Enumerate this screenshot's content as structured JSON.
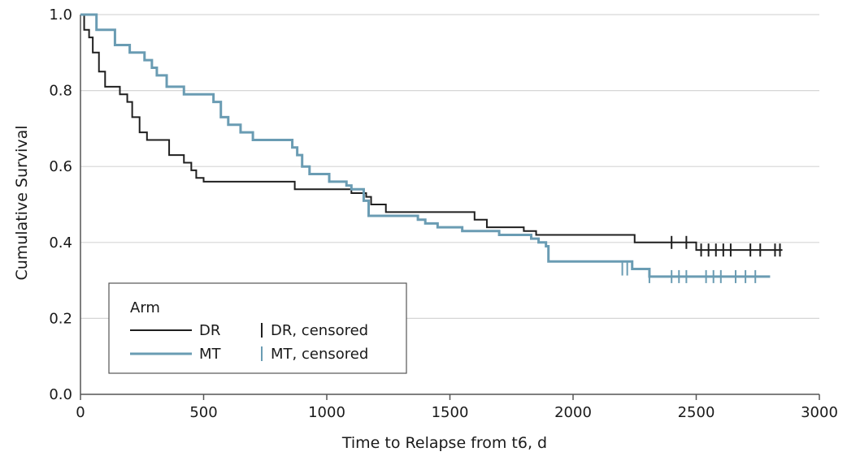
{
  "chart_data": {
    "type": "line",
    "xlabel": "Time to Relapse from t6, d",
    "ylabel": "Cumulative Survival",
    "xlim": [
      0,
      3000
    ],
    "ylim": [
      0,
      1.0
    ],
    "xticks": [
      0,
      500,
      1000,
      1500,
      2000,
      2500,
      3000
    ],
    "yticks": [
      "0.0",
      "0.2",
      "0.4",
      "0.6",
      "0.8",
      "1.0"
    ],
    "grid": "horizontal",
    "legend": {
      "title": "Arm",
      "placement": "bottom-left",
      "entries": [
        {
          "line_label": "DR",
          "censored_label": "DR, censored",
          "color": "#1f1f1f"
        },
        {
          "line_label": "MT",
          "censored_label": "MT, censored",
          "color": "#6a9cb3"
        }
      ]
    },
    "series": [
      {
        "name": "DR",
        "color": "#1f1f1f",
        "steps": [
          [
            0,
            1.0
          ],
          [
            15,
            0.96
          ],
          [
            35,
            0.94
          ],
          [
            50,
            0.9
          ],
          [
            75,
            0.85
          ],
          [
            100,
            0.81
          ],
          [
            160,
            0.79
          ],
          [
            190,
            0.77
          ],
          [
            210,
            0.73
          ],
          [
            240,
            0.69
          ],
          [
            270,
            0.67
          ],
          [
            330,
            0.67
          ],
          [
            360,
            0.63
          ],
          [
            420,
            0.61
          ],
          [
            450,
            0.59
          ],
          [
            470,
            0.57
          ],
          [
            500,
            0.56
          ],
          [
            570,
            0.56
          ],
          [
            700,
            0.56
          ],
          [
            820,
            0.56
          ],
          [
            870,
            0.54
          ],
          [
            1050,
            0.54
          ],
          [
            1090,
            0.54
          ],
          [
            1100,
            0.53
          ],
          [
            1150,
            0.53
          ],
          [
            1160,
            0.52
          ],
          [
            1180,
            0.5
          ],
          [
            1240,
            0.48
          ],
          [
            1450,
            0.48
          ],
          [
            1550,
            0.48
          ],
          [
            1600,
            0.46
          ],
          [
            1650,
            0.44
          ],
          [
            1700,
            0.44
          ],
          [
            1750,
            0.44
          ],
          [
            1800,
            0.43
          ],
          [
            1850,
            0.42
          ],
          [
            2200,
            0.42
          ],
          [
            2250,
            0.4
          ],
          [
            2400,
            0.4
          ],
          [
            2470,
            0.4
          ],
          [
            2500,
            0.38
          ],
          [
            2850,
            0.38
          ]
        ],
        "censored": [
          [
            2400,
            0.4
          ],
          [
            2460,
            0.4
          ],
          [
            2520,
            0.38
          ],
          [
            2550,
            0.38
          ],
          [
            2580,
            0.38
          ],
          [
            2610,
            0.38
          ],
          [
            2640,
            0.38
          ],
          [
            2720,
            0.38
          ],
          [
            2760,
            0.38
          ],
          [
            2820,
            0.38
          ],
          [
            2840,
            0.38
          ]
        ]
      },
      {
        "name": "MT",
        "color": "#6a9cb3",
        "steps": [
          [
            0,
            1.0
          ],
          [
            65,
            0.96
          ],
          [
            140,
            0.92
          ],
          [
            200,
            0.9
          ],
          [
            230,
            0.9
          ],
          [
            260,
            0.88
          ],
          [
            290,
            0.86
          ],
          [
            310,
            0.84
          ],
          [
            350,
            0.81
          ],
          [
            390,
            0.81
          ],
          [
            420,
            0.79
          ],
          [
            480,
            0.79
          ],
          [
            500,
            0.79
          ],
          [
            540,
            0.77
          ],
          [
            570,
            0.73
          ],
          [
            600,
            0.71
          ],
          [
            650,
            0.69
          ],
          [
            700,
            0.67
          ],
          [
            760,
            0.67
          ],
          [
            860,
            0.65
          ],
          [
            880,
            0.63
          ],
          [
            900,
            0.6
          ],
          [
            930,
            0.58
          ],
          [
            1010,
            0.56
          ],
          [
            1080,
            0.55
          ],
          [
            1100,
            0.54
          ],
          [
            1150,
            0.51
          ],
          [
            1170,
            0.47
          ],
          [
            1240,
            0.47
          ],
          [
            1370,
            0.46
          ],
          [
            1400,
            0.45
          ],
          [
            1450,
            0.44
          ],
          [
            1500,
            0.44
          ],
          [
            1550,
            0.43
          ],
          [
            1620,
            0.43
          ],
          [
            1700,
            0.42
          ],
          [
            1780,
            0.42
          ],
          [
            1830,
            0.41
          ],
          [
            1860,
            0.4
          ],
          [
            1890,
            0.39
          ],
          [
            1900,
            0.35
          ],
          [
            2000,
            0.35
          ],
          [
            2200,
            0.35
          ],
          [
            2240,
            0.33
          ],
          [
            2290,
            0.33
          ],
          [
            2310,
            0.31
          ],
          [
            2800,
            0.31
          ]
        ],
        "censored": [
          [
            2200,
            0.33
          ],
          [
            2220,
            0.33
          ],
          [
            2310,
            0.31
          ],
          [
            2400,
            0.31
          ],
          [
            2430,
            0.31
          ],
          [
            2460,
            0.31
          ],
          [
            2540,
            0.31
          ],
          [
            2570,
            0.31
          ],
          [
            2600,
            0.31
          ],
          [
            2660,
            0.31
          ],
          [
            2700,
            0.31
          ],
          [
            2740,
            0.31
          ]
        ]
      }
    ]
  }
}
